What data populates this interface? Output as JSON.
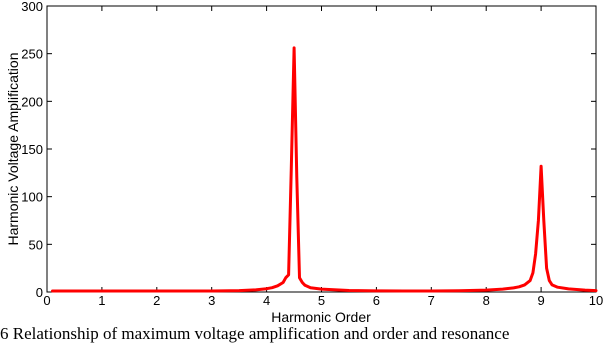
{
  "chart_data": {
    "type": "line",
    "title": "",
    "xlabel": "Harmonic Order",
    "ylabel": "Harmonic Voltage Amplification",
    "xlim": [
      0,
      10
    ],
    "ylim": [
      0,
      300
    ],
    "xticks": [
      0,
      1,
      2,
      3,
      4,
      5,
      6,
      7,
      8,
      9,
      10
    ],
    "yticks": [
      0,
      50,
      100,
      150,
      200,
      250,
      300
    ],
    "grid": false,
    "line_color": "#ff0000",
    "series": [
      {
        "x": [
          0.1,
          0.5,
          1,
          1.5,
          2,
          2.5,
          3,
          3.5,
          3.8,
          4.0,
          4.1,
          4.2,
          4.3,
          4.35,
          4.4,
          4.45,
          4.5,
          4.55,
          4.6,
          4.65,
          4.7,
          4.8,
          5.0,
          5.5,
          6.0,
          6.5,
          7.0,
          7.5,
          8.0,
          8.3,
          8.5,
          8.6,
          8.7,
          8.8,
          8.85,
          8.9,
          8.95,
          9.0,
          9.05,
          9.1,
          9.15,
          9.2,
          9.3,
          9.5,
          9.8,
          10.0
        ],
        "values": [
          1.0,
          1.0,
          1.0,
          1.0,
          1.0,
          1.0,
          1.1,
          1.5,
          2.2,
          3.5,
          4.5,
          6.5,
          10,
          15,
          18,
          130,
          256,
          120,
          15,
          10,
          7,
          4.5,
          3.0,
          1.6,
          1.2,
          1.1,
          1.1,
          1.3,
          2.0,
          3.0,
          4.3,
          5.5,
          7.5,
          12,
          20,
          40,
          75,
          132,
          75,
          25,
          12,
          7.5,
          5.0,
          3.2,
          2.0,
          1.5
        ]
      }
    ]
  },
  "caption": "6 Relationship of maximum voltage amplification and order and resonance"
}
